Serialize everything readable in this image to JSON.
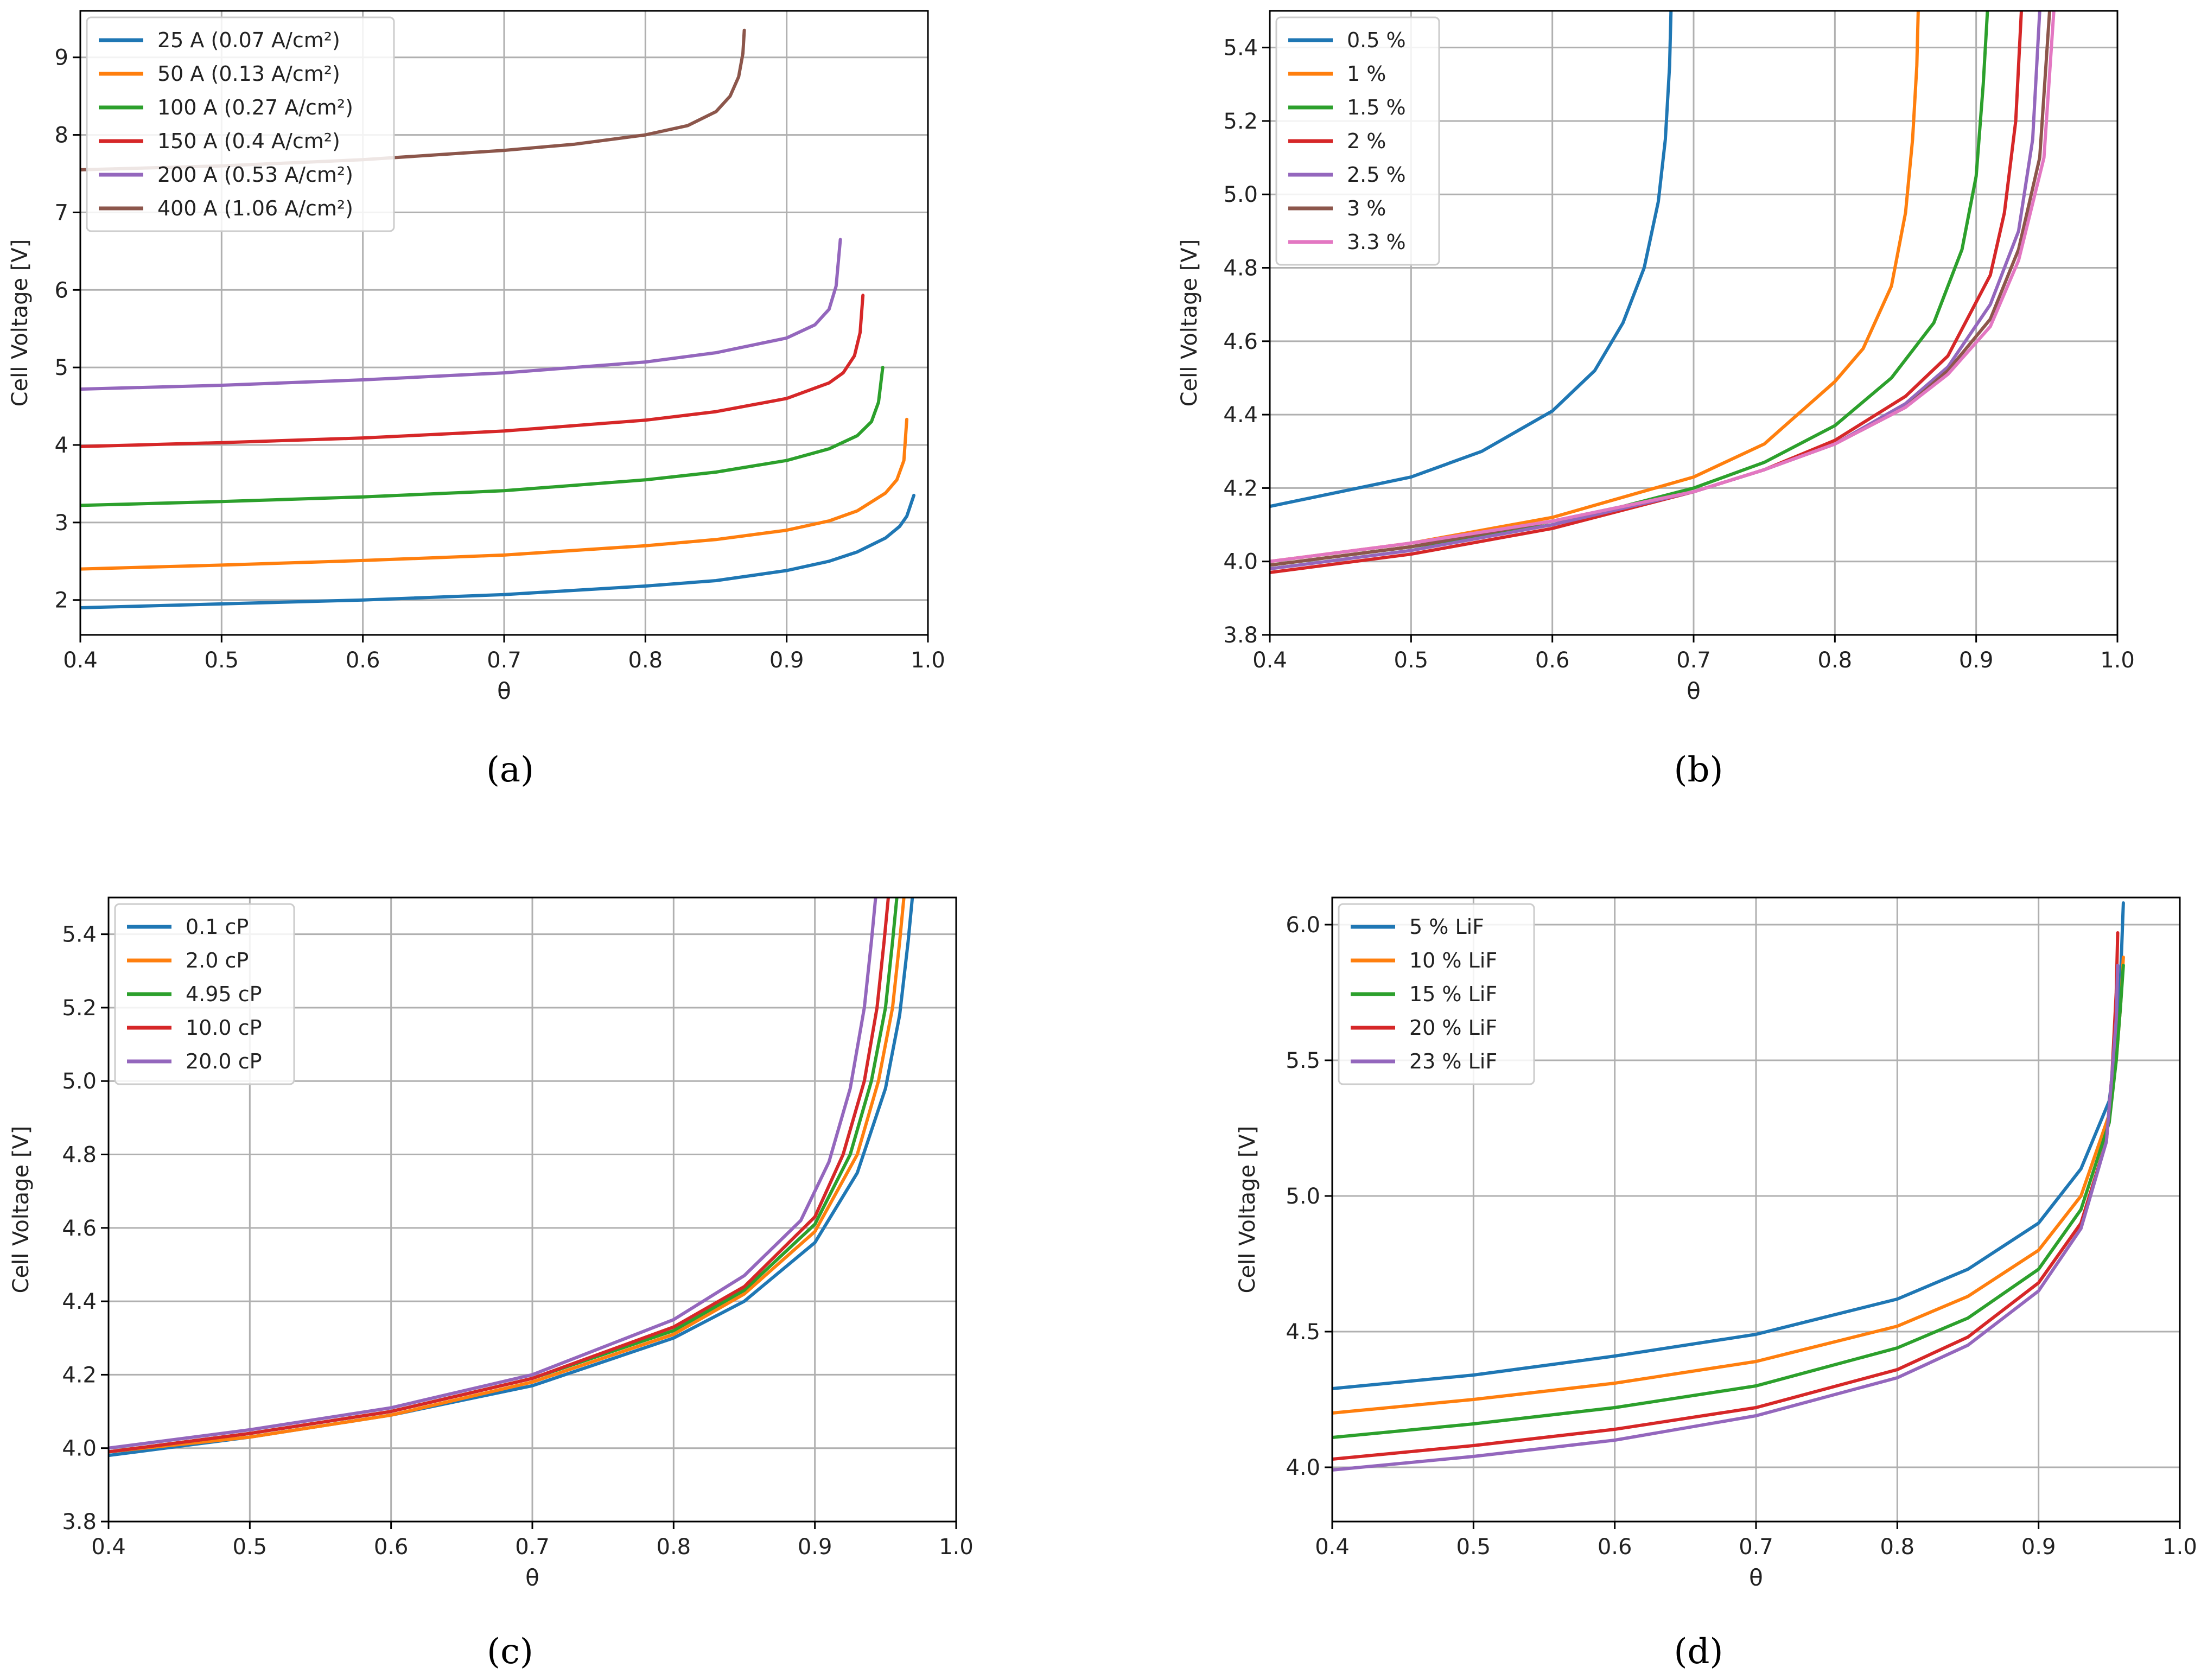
{
  "chart_data": [
    {
      "panel": "a",
      "type": "line",
      "caption": "(a)",
      "xlabel": "θ",
      "ylabel": "Cell Voltage [V]",
      "xlim": [
        0.4,
        1.0
      ],
      "ylim": [
        1.55,
        9.6
      ],
      "xticks": [
        "0.4",
        "0.5",
        "0.6",
        "0.7",
        "0.8",
        "0.9",
        "1.0"
      ],
      "yticks": [
        "2",
        "3",
        "4",
        "5",
        "6",
        "7",
        "8",
        "9"
      ],
      "grid": true,
      "legend_position": "top-left",
      "series": [
        {
          "name": "25 A (0.07 A/cm²)",
          "color": "#1f77b4",
          "x": [
            0.4,
            0.5,
            0.6,
            0.7,
            0.8,
            0.85,
            0.9,
            0.93,
            0.95,
            0.97,
            0.98,
            0.985,
            0.99
          ],
          "y": [
            1.9,
            1.95,
            2.0,
            2.07,
            2.18,
            2.25,
            2.38,
            2.5,
            2.62,
            2.8,
            2.95,
            3.08,
            3.35
          ]
        },
        {
          "name": "50 A (0.13 A/cm²)",
          "color": "#ff7f0e",
          "x": [
            0.4,
            0.5,
            0.6,
            0.7,
            0.8,
            0.85,
            0.9,
            0.93,
            0.95,
            0.97,
            0.978,
            0.983,
            0.985
          ],
          "y": [
            2.4,
            2.45,
            2.51,
            2.58,
            2.7,
            2.78,
            2.9,
            3.02,
            3.15,
            3.38,
            3.55,
            3.8,
            4.33
          ]
        },
        {
          "name": "100 A (0.27 A/cm²)",
          "color": "#2ca02c",
          "x": [
            0.4,
            0.5,
            0.6,
            0.7,
            0.8,
            0.85,
            0.9,
            0.93,
            0.95,
            0.96,
            0.965,
            0.968
          ],
          "y": [
            3.22,
            3.27,
            3.33,
            3.41,
            3.55,
            3.65,
            3.8,
            3.95,
            4.12,
            4.3,
            4.55,
            5.0
          ]
        },
        {
          "name": "150 A (0.4 A/cm²)",
          "color": "#d62728",
          "x": [
            0.4,
            0.5,
            0.6,
            0.7,
            0.8,
            0.85,
            0.9,
            0.93,
            0.94,
            0.948,
            0.952,
            0.954
          ],
          "y": [
            3.98,
            4.03,
            4.09,
            4.18,
            4.32,
            4.43,
            4.6,
            4.8,
            4.93,
            5.15,
            5.45,
            5.93
          ]
        },
        {
          "name": "200 A (0.53 A/cm²)",
          "color": "#9467bd",
          "x": [
            0.4,
            0.5,
            0.6,
            0.7,
            0.8,
            0.85,
            0.9,
            0.92,
            0.93,
            0.935,
            0.938
          ],
          "y": [
            4.72,
            4.77,
            4.84,
            4.93,
            5.07,
            5.19,
            5.38,
            5.55,
            5.75,
            6.05,
            6.65
          ]
        },
        {
          "name": "400 A (1.06 A/cm²)",
          "color": "#8c564b",
          "x": [
            0.4,
            0.5,
            0.6,
            0.7,
            0.75,
            0.8,
            0.83,
            0.85,
            0.86,
            0.866,
            0.869,
            0.87
          ],
          "y": [
            7.55,
            7.6,
            7.68,
            7.8,
            7.88,
            8.0,
            8.12,
            8.3,
            8.5,
            8.75,
            9.05,
            9.35
          ]
        }
      ]
    },
    {
      "panel": "b",
      "type": "line",
      "caption": "(b)",
      "xlabel": "θ",
      "ylabel": "Cell Voltage [V]",
      "xlim": [
        0.4,
        1.0
      ],
      "ylim": [
        3.8,
        5.5
      ],
      "xticks": [
        "0.4",
        "0.5",
        "0.6",
        "0.7",
        "0.8",
        "0.9",
        "1.0"
      ],
      "yticks": [
        "3.8",
        "4.0",
        "4.2",
        "4.4",
        "4.6",
        "4.8",
        "5.0",
        "5.2",
        "5.4"
      ],
      "grid": true,
      "legend_position": "top-left",
      "series": [
        {
          "name": "0.5 %",
          "color": "#1f77b4",
          "x": [
            0.4,
            0.5,
            0.55,
            0.6,
            0.63,
            0.65,
            0.665,
            0.675,
            0.68,
            0.683,
            0.684
          ],
          "y": [
            4.15,
            4.23,
            4.3,
            4.41,
            4.52,
            4.65,
            4.8,
            4.98,
            5.15,
            5.35,
            5.5
          ]
        },
        {
          "name": "1 %",
          "color": "#ff7f0e",
          "x": [
            0.4,
            0.5,
            0.6,
            0.7,
            0.75,
            0.8,
            0.82,
            0.84,
            0.85,
            0.855,
            0.858,
            0.859
          ],
          "y": [
            4.0,
            4.05,
            4.12,
            4.23,
            4.32,
            4.49,
            4.58,
            4.75,
            4.95,
            5.15,
            5.35,
            5.5
          ]
        },
        {
          "name": "1.5 %",
          "color": "#2ca02c",
          "x": [
            0.4,
            0.5,
            0.6,
            0.7,
            0.75,
            0.8,
            0.84,
            0.87,
            0.89,
            0.9,
            0.905,
            0.908
          ],
          "y": [
            3.99,
            4.04,
            4.1,
            4.2,
            4.27,
            4.37,
            4.5,
            4.65,
            4.85,
            5.05,
            5.3,
            5.5
          ]
        },
        {
          "name": "2 %",
          "color": "#d62728",
          "x": [
            0.4,
            0.5,
            0.6,
            0.7,
            0.75,
            0.8,
            0.85,
            0.88,
            0.91,
            0.92,
            0.928,
            0.932
          ],
          "y": [
            3.97,
            4.02,
            4.09,
            4.19,
            4.25,
            4.33,
            4.45,
            4.56,
            4.78,
            4.95,
            5.2,
            5.5
          ]
        },
        {
          "name": "2.5 %",
          "color": "#9467bd",
          "x": [
            0.4,
            0.5,
            0.6,
            0.7,
            0.75,
            0.8,
            0.85,
            0.88,
            0.91,
            0.93,
            0.94,
            0.945
          ],
          "y": [
            3.98,
            4.03,
            4.1,
            4.19,
            4.25,
            4.32,
            4.43,
            4.53,
            4.7,
            4.9,
            5.15,
            5.5
          ]
        },
        {
          "name": "3 %",
          "color": "#8c564b",
          "x": [
            0.4,
            0.5,
            0.6,
            0.7,
            0.75,
            0.8,
            0.85,
            0.88,
            0.91,
            0.93,
            0.945,
            0.952
          ],
          "y": [
            3.99,
            4.04,
            4.11,
            4.19,
            4.25,
            4.32,
            4.42,
            4.52,
            4.66,
            4.85,
            5.1,
            5.5
          ]
        },
        {
          "name": "3.3 %",
          "color": "#e377c2",
          "x": [
            0.4,
            0.5,
            0.6,
            0.7,
            0.75,
            0.8,
            0.85,
            0.88,
            0.91,
            0.93,
            0.948,
            0.955
          ],
          "y": [
            4.0,
            4.05,
            4.11,
            4.19,
            4.25,
            4.32,
            4.42,
            4.51,
            4.64,
            4.82,
            5.1,
            5.5
          ]
        }
      ]
    },
    {
      "panel": "c",
      "type": "line",
      "caption": "(c)",
      "xlabel": "θ",
      "ylabel": "Cell Voltage [V]",
      "xlim": [
        0.4,
        1.0
      ],
      "ylim": [
        3.8,
        5.5
      ],
      "xticks": [
        "0.4",
        "0.5",
        "0.6",
        "0.7",
        "0.8",
        "0.9",
        "1.0"
      ],
      "yticks": [
        "3.8",
        "4.0",
        "4.2",
        "4.4",
        "4.6",
        "4.8",
        "5.0",
        "5.2",
        "5.4"
      ],
      "grid": true,
      "legend_position": "top-left",
      "series": [
        {
          "name": "0.1 cP",
          "color": "#1f77b4",
          "x": [
            0.4,
            0.5,
            0.6,
            0.7,
            0.8,
            0.85,
            0.9,
            0.93,
            0.95,
            0.96,
            0.966,
            0.969
          ],
          "y": [
            3.98,
            4.03,
            4.09,
            4.17,
            4.3,
            4.4,
            4.56,
            4.75,
            4.98,
            5.18,
            5.38,
            5.5
          ]
        },
        {
          "name": "2.0 cP",
          "color": "#ff7f0e",
          "x": [
            0.4,
            0.5,
            0.6,
            0.7,
            0.8,
            0.85,
            0.9,
            0.93,
            0.945,
            0.955,
            0.96,
            0.963
          ],
          "y": [
            3.99,
            4.03,
            4.09,
            4.18,
            4.31,
            4.42,
            4.59,
            4.8,
            5.0,
            5.2,
            5.38,
            5.5
          ]
        },
        {
          "name": "4.95 cP",
          "color": "#2ca02c",
          "x": [
            0.4,
            0.5,
            0.6,
            0.7,
            0.8,
            0.85,
            0.9,
            0.925,
            0.94,
            0.95,
            0.955,
            0.958
          ],
          "y": [
            3.99,
            4.04,
            4.1,
            4.19,
            4.32,
            4.43,
            4.61,
            4.8,
            5.0,
            5.2,
            5.38,
            5.5
          ]
        },
        {
          "name": "10.0 cP",
          "color": "#d62728",
          "x": [
            0.4,
            0.5,
            0.6,
            0.7,
            0.8,
            0.85,
            0.9,
            0.92,
            0.935,
            0.944,
            0.949,
            0.952
          ],
          "y": [
            3.99,
            4.04,
            4.1,
            4.19,
            4.33,
            4.44,
            4.63,
            4.8,
            5.0,
            5.2,
            5.38,
            5.5
          ]
        },
        {
          "name": "20.0 cP",
          "color": "#9467bd",
          "x": [
            0.4,
            0.5,
            0.6,
            0.7,
            0.8,
            0.85,
            0.89,
            0.91,
            0.925,
            0.935,
            0.94,
            0.943
          ],
          "y": [
            4.0,
            4.05,
            4.11,
            4.2,
            4.35,
            4.47,
            4.62,
            4.78,
            4.98,
            5.2,
            5.38,
            5.5
          ]
        }
      ]
    },
    {
      "panel": "d",
      "type": "line",
      "caption": "(d)",
      "xlabel": "θ",
      "ylabel": "Cell Voltage [V]",
      "xlim": [
        0.4,
        1.0
      ],
      "ylim": [
        3.8,
        6.1
      ],
      "xticks": [
        "0.4",
        "0.5",
        "0.6",
        "0.7",
        "0.8",
        "0.9",
        "1.0"
      ],
      "yticks": [
        "4.0",
        "4.5",
        "5.0",
        "5.5",
        "6.0"
      ],
      "grid": true,
      "legend_position": "top-left",
      "series": [
        {
          "name": "5 % LiF",
          "color": "#1f77b4",
          "x": [
            0.4,
            0.5,
            0.6,
            0.7,
            0.8,
            0.85,
            0.9,
            0.93,
            0.95,
            0.955,
            0.958,
            0.96
          ],
          "y": [
            4.29,
            4.34,
            4.41,
            4.49,
            4.62,
            4.73,
            4.9,
            5.1,
            5.35,
            5.55,
            5.8,
            6.08
          ]
        },
        {
          "name": "10 % LiF",
          "color": "#ff7f0e",
          "x": [
            0.4,
            0.5,
            0.6,
            0.7,
            0.8,
            0.85,
            0.9,
            0.93,
            0.95,
            0.955,
            0.958,
            0.96
          ],
          "y": [
            4.2,
            4.25,
            4.31,
            4.39,
            4.52,
            4.63,
            4.8,
            5.0,
            5.3,
            5.5,
            5.7,
            5.88
          ]
        },
        {
          "name": "15 % LiF",
          "color": "#2ca02c",
          "x": [
            0.4,
            0.5,
            0.6,
            0.7,
            0.8,
            0.85,
            0.9,
            0.93,
            0.95,
            0.955,
            0.958,
            0.96
          ],
          "y": [
            4.11,
            4.16,
            4.22,
            4.3,
            4.44,
            4.55,
            4.73,
            4.95,
            5.27,
            5.5,
            5.7,
            5.85
          ]
        },
        {
          "name": "20 % LiF",
          "color": "#d62728",
          "x": [
            0.4,
            0.5,
            0.6,
            0.7,
            0.8,
            0.85,
            0.9,
            0.93,
            0.948,
            0.952,
            0.955,
            0.956
          ],
          "y": [
            4.03,
            4.08,
            4.14,
            4.22,
            4.36,
            4.48,
            4.68,
            4.9,
            5.2,
            5.45,
            5.75,
            5.97
          ]
        },
        {
          "name": "23 % LiF",
          "color": "#9467bd",
          "x": [
            0.4,
            0.5,
            0.6,
            0.7,
            0.8,
            0.85,
            0.9,
            0.93,
            0.948,
            0.952,
            0.955,
            0.956
          ],
          "y": [
            3.99,
            4.04,
            4.1,
            4.19,
            4.33,
            4.45,
            4.65,
            4.88,
            5.2,
            5.45,
            5.65,
            5.85
          ]
        }
      ]
    }
  ]
}
